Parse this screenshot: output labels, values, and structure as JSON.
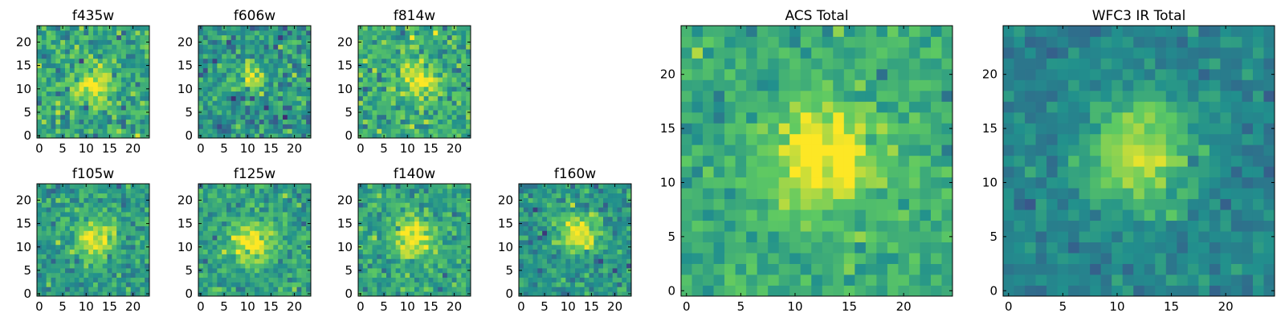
{
  "figure": {
    "description_free": true
  },
  "colormap": {
    "name": "viridis",
    "stops": [
      "#440154",
      "#3b528b",
      "#21908d",
      "#5dc963",
      "#fde725"
    ]
  },
  "chart_data": [
    {
      "type": "heatmap",
      "title": "f435w",
      "grid_size": [
        24,
        24
      ],
      "xlim": [
        -0.5,
        23.5
      ],
      "ylim": [
        -0.5,
        23.5
      ],
      "xticks": [
        0,
        5,
        10,
        15,
        20
      ],
      "yticks": [
        0,
        5,
        10,
        15,
        20
      ],
      "peak_center": [
        12,
        11
      ],
      "peak_width": 2.6,
      "noise_level": 0.62,
      "background_level": 0.6,
      "seed": 435
    },
    {
      "type": "heatmap",
      "title": "f606w",
      "grid_size": [
        24,
        24
      ],
      "xlim": [
        -0.5,
        23.5
      ],
      "ylim": [
        -0.5,
        23.5
      ],
      "xticks": [
        0,
        5,
        10,
        15,
        20
      ],
      "yticks": [
        0,
        5,
        10,
        15,
        20
      ],
      "peak_center": [
        11,
        12
      ],
      "peak_width": 2.0,
      "noise_level": 0.55,
      "background_level": 0.52,
      "seed": 606
    },
    {
      "type": "heatmap",
      "title": "f814w",
      "grid_size": [
        24,
        24
      ],
      "xlim": [
        -0.5,
        23.5
      ],
      "ylim": [
        -0.5,
        23.5
      ],
      "xticks": [
        0,
        5,
        10,
        15,
        20
      ],
      "yticks": [
        0,
        5,
        10,
        15,
        20
      ],
      "peak_center": [
        13,
        12
      ],
      "peak_width": 2.4,
      "noise_level": 0.55,
      "background_level": 0.62,
      "seed": 814
    },
    {
      "type": "heatmap",
      "title": "f105w",
      "grid_size": [
        24,
        24
      ],
      "xlim": [
        -0.5,
        23.5
      ],
      "ylim": [
        -0.5,
        23.5
      ],
      "xticks": [
        0,
        5,
        10,
        15,
        20
      ],
      "yticks": [
        0,
        5,
        10,
        15,
        20
      ],
      "peak_center": [
        12,
        12
      ],
      "peak_width": 3.0,
      "noise_level": 0.45,
      "background_level": 0.55,
      "seed": 105
    },
    {
      "type": "heatmap",
      "title": "f125w",
      "grid_size": [
        24,
        24
      ],
      "xlim": [
        -0.5,
        23.5
      ],
      "ylim": [
        -0.5,
        23.5
      ],
      "xticks": [
        0,
        5,
        10,
        15,
        20
      ],
      "yticks": [
        0,
        5,
        10,
        15,
        20
      ],
      "peak_center": [
        11,
        11
      ],
      "peak_width": 3.0,
      "noise_level": 0.45,
      "background_level": 0.58,
      "seed": 125
    },
    {
      "type": "heatmap",
      "title": "f140w",
      "grid_size": [
        24,
        24
      ],
      "xlim": [
        -0.5,
        23.5
      ],
      "ylim": [
        -0.5,
        23.5
      ],
      "xticks": [
        0,
        5,
        10,
        15,
        20
      ],
      "yticks": [
        0,
        5,
        10,
        15,
        20
      ],
      "peak_center": [
        11,
        12
      ],
      "peak_width": 3.0,
      "noise_level": 0.45,
      "background_level": 0.58,
      "seed": 140
    },
    {
      "type": "heatmap",
      "title": "f160w",
      "grid_size": [
        24,
        24
      ],
      "xlim": [
        -0.5,
        23.5
      ],
      "ylim": [
        -0.5,
        23.5
      ],
      "xticks": [
        0,
        5,
        10,
        15,
        20
      ],
      "yticks": [
        0,
        5,
        10,
        15,
        20
      ],
      "peak_center": [
        12,
        13
      ],
      "peak_width": 3.0,
      "noise_level": 0.45,
      "background_level": 0.52,
      "seed": 160
    },
    {
      "type": "heatmap",
      "title": "ACS Total",
      "grid_size": [
        25,
        25
      ],
      "xlim": [
        -0.5,
        24.5
      ],
      "ylim": [
        -0.5,
        24.5
      ],
      "xticks": [
        0,
        5,
        10,
        15,
        20
      ],
      "yticks": [
        0,
        5,
        10,
        15,
        20
      ],
      "peak_center": [
        12.5,
        12
      ],
      "peak_width": 3.4,
      "noise_level": 0.38,
      "background_level": 0.62,
      "seed": 999
    },
    {
      "type": "heatmap",
      "title": "WFC3 IR Total",
      "grid_size": [
        25,
        25
      ],
      "xlim": [
        -0.5,
        24.5
      ],
      "ylim": [
        -0.5,
        24.5
      ],
      "xticks": [
        0,
        5,
        10,
        15,
        20
      ],
      "yticks": [
        0,
        5,
        10,
        15,
        20
      ],
      "peak_center": [
        12,
        12.5
      ],
      "peak_width": 3.6,
      "noise_level": 0.3,
      "background_level": 0.45,
      "seed": 777
    }
  ]
}
